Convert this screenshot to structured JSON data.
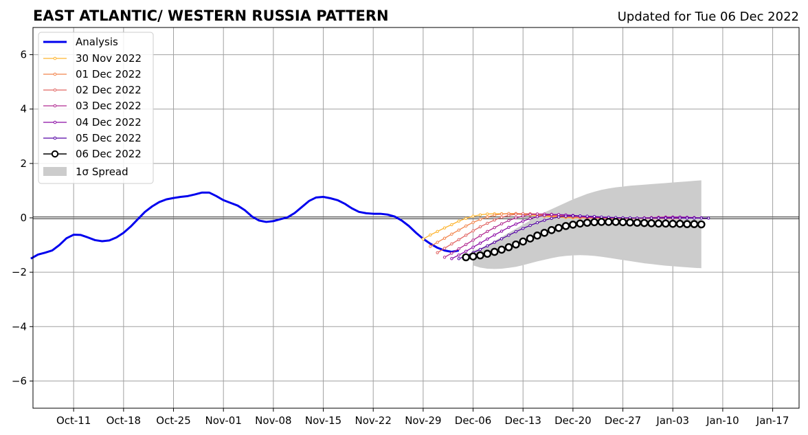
{
  "chart_data": {
    "type": "line",
    "title": "EAST ATLANTIC/ WESTERN RUSSIA PATTERN",
    "subtitle": "Updated for Tue 06 Dec 2022",
    "x_origin_date": "2022-10-05",
    "xlim_days": [
      0.3,
      107.7
    ],
    "ylim": [
      -7,
      7
    ],
    "xticks": [
      {
        "day": 6,
        "label": "Oct-11"
      },
      {
        "day": 13,
        "label": "Oct-18"
      },
      {
        "day": 20,
        "label": "Oct-25"
      },
      {
        "day": 27,
        "label": "Nov-01"
      },
      {
        "day": 34,
        "label": "Nov-08"
      },
      {
        "day": 41,
        "label": "Nov-15"
      },
      {
        "day": 48,
        "label": "Nov-22"
      },
      {
        "day": 55,
        "label": "Nov-29"
      },
      {
        "day": 62,
        "label": "Dec-06"
      },
      {
        "day": 69,
        "label": "Dec-13"
      },
      {
        "day": 76,
        "label": "Dec-20"
      },
      {
        "day": 83,
        "label": "Dec-27"
      },
      {
        "day": 90,
        "label": "Jan-03"
      },
      {
        "day": 97,
        "label": "Jan-10"
      },
      {
        "day": 104,
        "label": "Jan-17"
      }
    ],
    "yticks": [
      {
        "value": 6,
        "label": "6"
      },
      {
        "value": 4,
        "label": "4"
      },
      {
        "value": 2,
        "label": "2"
      },
      {
        "value": 0,
        "label": "0"
      },
      {
        "value": -2,
        "label": "−2"
      },
      {
        "value": -4,
        "label": "−4"
      },
      {
        "value": -6,
        "label": "−6"
      }
    ],
    "grid": true,
    "legend_position": "upper-left",
    "analysis": {
      "name": "Analysis",
      "color": "#0000ee",
      "start_day": 0,
      "values": [
        -1.5,
        -1.35,
        -1.28,
        -1.2,
        -1.0,
        -0.75,
        -0.62,
        -0.63,
        -0.72,
        -0.82,
        -0.86,
        -0.83,
        -0.72,
        -0.55,
        -0.32,
        -0.05,
        0.22,
        0.42,
        0.58,
        0.68,
        0.73,
        0.77,
        0.8,
        0.86,
        0.93,
        0.93,
        0.8,
        0.65,
        0.55,
        0.45,
        0.28,
        0.05,
        -0.1,
        -0.15,
        -0.12,
        -0.05,
        0.02,
        0.18,
        0.4,
        0.62,
        0.75,
        0.77,
        0.72,
        0.65,
        0.52,
        0.35,
        0.22,
        0.17,
        0.15,
        0.15,
        0.12,
        0.05,
        -0.1,
        -0.3,
        -0.55,
        -0.77,
        -0.95,
        -1.1,
        -1.2,
        -1.25,
        -1.2
      ]
    },
    "forecasts": [
      {
        "name": "30 Nov 2022",
        "color": "#fdb42f",
        "start_day": 55,
        "values": [
          -0.78,
          -0.63,
          -0.5,
          -0.37,
          -0.25,
          -0.12,
          -0.02,
          0.06,
          0.11,
          0.14,
          0.15,
          0.15,
          0.15,
          0.14,
          0.12,
          0.1,
          0.08,
          0.06,
          0.04,
          0.02,
          0.01,
          0.0,
          0.0,
          -0.01,
          -0.01,
          -0.02,
          -0.02,
          -0.02,
          -0.02,
          -0.02,
          -0.02,
          -0.02,
          -0.02,
          -0.02,
          -0.02,
          -0.02
        ]
      },
      {
        "name": "01 Dec 2022",
        "color": "#f2844b",
        "start_day": 56,
        "values": [
          -1.05,
          -0.9,
          -0.75,
          -0.6,
          -0.45,
          -0.3,
          -0.17,
          -0.06,
          0.03,
          0.1,
          0.14,
          0.16,
          0.16,
          0.15,
          0.13,
          0.11,
          0.09,
          0.07,
          0.05,
          0.03,
          0.02,
          0.01,
          0.0,
          -0.01,
          -0.01,
          -0.02,
          -0.02,
          -0.02,
          -0.02,
          -0.02,
          -0.02,
          -0.02,
          -0.02,
          -0.02,
          -0.02,
          -0.02
        ]
      },
      {
        "name": "02 Dec 2022",
        "color": "#e16462",
        "start_day": 57,
        "values": [
          -1.28,
          -1.12,
          -0.96,
          -0.8,
          -0.64,
          -0.48,
          -0.33,
          -0.2,
          -0.08,
          0.02,
          0.09,
          0.13,
          0.15,
          0.15,
          0.14,
          0.12,
          0.1,
          0.08,
          0.06,
          0.04,
          0.02,
          0.01,
          0.0,
          0.0,
          -0.01,
          -0.01,
          -0.01,
          -0.01,
          -0.01,
          0.0,
          0.0,
          0.01,
          0.02,
          0.02,
          0.01,
          0.0
        ]
      },
      {
        "name": "03 Dec 2022",
        "color": "#b12a90",
        "start_day": 58,
        "values": [
          -1.45,
          -1.3,
          -1.14,
          -0.98,
          -0.82,
          -0.66,
          -0.5,
          -0.36,
          -0.22,
          -0.1,
          0.0,
          0.07,
          0.12,
          0.14,
          0.14,
          0.13,
          0.11,
          0.09,
          0.07,
          0.05,
          0.03,
          0.02,
          0.01,
          0.0,
          0.0,
          -0.01,
          -0.01,
          -0.01,
          0.0,
          0.01,
          0.02,
          0.03,
          0.03,
          0.02,
          0.01,
          0.0
        ]
      },
      {
        "name": "04 Dec 2022",
        "color": "#8b0aa5",
        "start_day": 59,
        "values": [
          -1.5,
          -1.37,
          -1.23,
          -1.08,
          -0.93,
          -0.78,
          -0.63,
          -0.49,
          -0.35,
          -0.23,
          -0.12,
          -0.03,
          0.04,
          0.09,
          0.12,
          0.12,
          0.11,
          0.09,
          0.07,
          0.05,
          0.03,
          0.02,
          0.01,
          0.0,
          0.0,
          -0.01,
          -0.01,
          -0.01,
          -0.01,
          0.0,
          0.01,
          0.02,
          0.03,
          0.02,
          0.01,
          0.0
        ]
      },
      {
        "name": "05 Dec 2022",
        "color": "#5302a3",
        "start_day": 60,
        "values": [
          -1.5,
          -1.4,
          -1.28,
          -1.16,
          -1.03,
          -0.9,
          -0.77,
          -0.64,
          -0.51,
          -0.39,
          -0.28,
          -0.18,
          -0.09,
          -0.02,
          0.03,
          0.06,
          0.07,
          0.07,
          0.06,
          0.05,
          0.03,
          0.02,
          0.01,
          0.0,
          0.0,
          -0.01,
          -0.01,
          -0.01,
          -0.01,
          -0.01,
          -0.01,
          -0.01,
          -0.01,
          -0.01,
          -0.01,
          -0.01
        ]
      },
      {
        "name": "06 Dec 2022",
        "color": "#000000",
        "start_day": 61,
        "markers": "circle-large",
        "values": [
          -1.45,
          -1.42,
          -1.38,
          -1.32,
          -1.25,
          -1.17,
          -1.08,
          -0.98,
          -0.87,
          -0.76,
          -0.65,
          -0.55,
          -0.45,
          -0.37,
          -0.3,
          -0.25,
          -0.21,
          -0.18,
          -0.16,
          -0.15,
          -0.15,
          -0.15,
          -0.16,
          -0.17,
          -0.18,
          -0.19,
          -0.2,
          -0.21,
          -0.21,
          -0.22,
          -0.22,
          -0.23,
          -0.23,
          -0.24
        ]
      }
    ],
    "spread": {
      "name": "1σ Spread",
      "color": "#cccccc",
      "start_day": 62,
      "upper": [
        -1.2,
        -1.12,
        -1.0,
        -0.85,
        -0.7,
        -0.55,
        -0.4,
        -0.25,
        -0.1,
        0.05,
        0.2,
        0.32,
        0.44,
        0.56,
        0.68,
        0.78,
        0.88,
        0.96,
        1.03,
        1.08,
        1.12,
        1.15,
        1.18,
        1.2,
        1.22,
        1.24,
        1.26,
        1.28,
        1.3,
        1.32,
        1.34,
        1.36,
        1.38
      ],
      "lower": [
        -1.75,
        -1.83,
        -1.87,
        -1.88,
        -1.87,
        -1.84,
        -1.8,
        -1.74,
        -1.67,
        -1.6,
        -1.54,
        -1.48,
        -1.43,
        -1.4,
        -1.38,
        -1.37,
        -1.38,
        -1.4,
        -1.43,
        -1.47,
        -1.51,
        -1.55,
        -1.59,
        -1.63,
        -1.67,
        -1.7,
        -1.73,
        -1.76,
        -1.78,
        -1.8,
        -1.82,
        -1.84,
        -1.85
      ]
    },
    "legend": [
      {
        "label": "Analysis",
        "key": "analysis"
      },
      {
        "label": "30 Nov 2022",
        "key": "f0"
      },
      {
        "label": "01 Dec 2022",
        "key": "f1"
      },
      {
        "label": "02 Dec 2022",
        "key": "f2"
      },
      {
        "label": "03 Dec 2022",
        "key": "f3"
      },
      {
        "label": "04 Dec 2022",
        "key": "f4"
      },
      {
        "label": "05 Dec 2022",
        "key": "f5"
      },
      {
        "label": "06 Dec 2022",
        "key": "f6"
      },
      {
        "label": "1σ Spread",
        "key": "spread"
      }
    ]
  }
}
